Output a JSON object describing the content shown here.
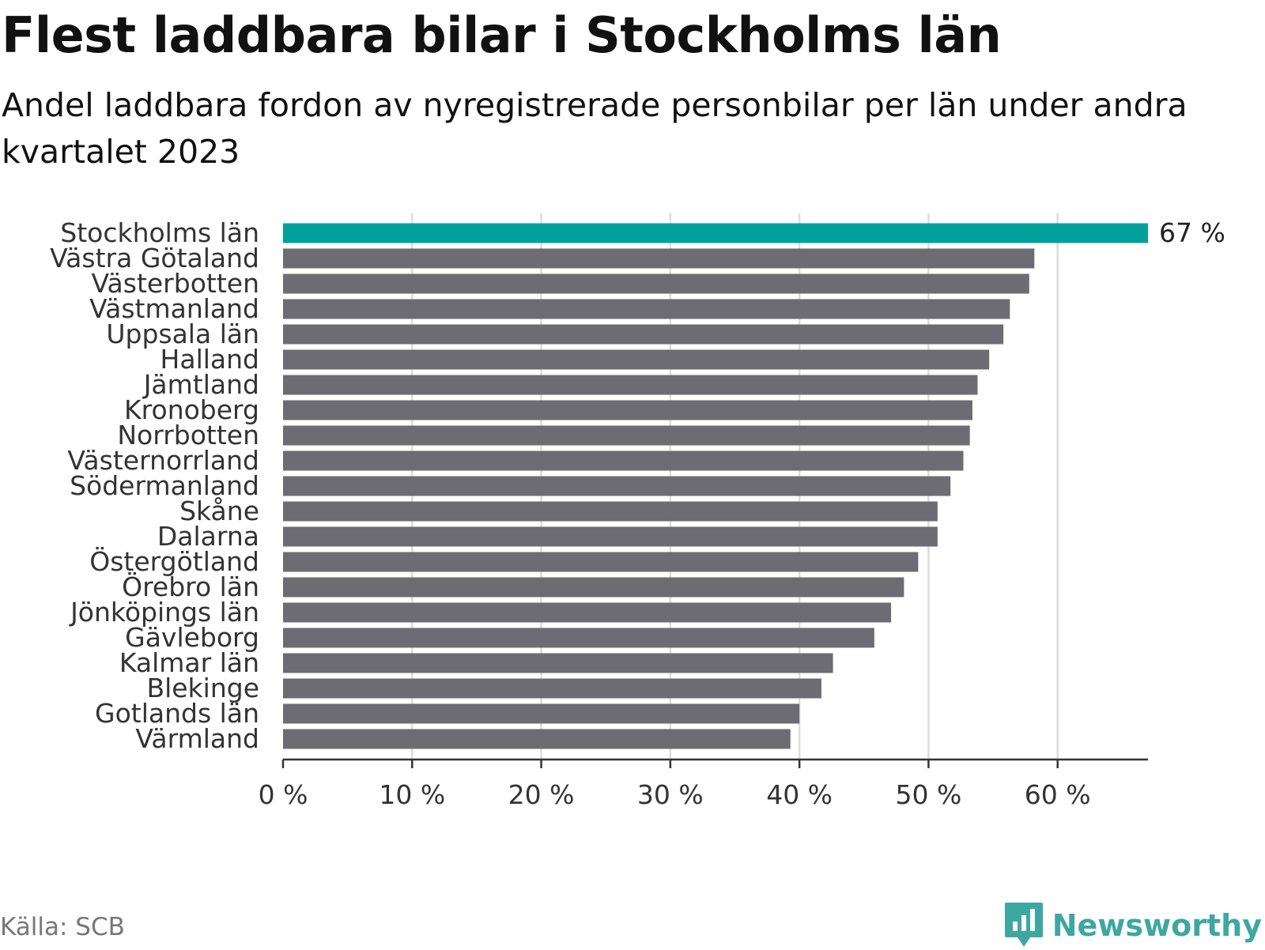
{
  "header": {
    "title": "Flest laddbara bilar i Stockholms län",
    "subtitle": "Andel laddbara fordon av nyregistrerade personbilar per län under andra kvartalet 2023"
  },
  "footer": {
    "source": "Källa: SCB",
    "brand": "Newsworthy"
  },
  "colors": {
    "highlight": "#00a19a",
    "bar": "#6d6c72",
    "grid": "#dddddd",
    "axis": "#333333",
    "brand": "#3ea7a2"
  },
  "chart_data": {
    "type": "bar",
    "orientation": "horizontal",
    "title": "Flest laddbara bilar i Stockholms län",
    "subtitle": "Andel laddbara fordon av nyregistrerade personbilar per län under andra kvartalet 2023",
    "xlabel": "",
    "ylabel": "",
    "unit": "%",
    "xlim": [
      0,
      67
    ],
    "xticks": [
      0,
      10,
      20,
      30,
      40,
      50,
      60
    ],
    "xtick_labels": [
      "0 %",
      "10 %",
      "20 %",
      "30 %",
      "40 %",
      "50 %",
      "60 %"
    ],
    "grid": true,
    "highlight_index": 0,
    "value_labels": [
      {
        "index": 0,
        "text": "67 %"
      }
    ],
    "categories": [
      "Stockholms län",
      "Västra Götaland",
      "Västerbotten",
      "Västmanland",
      "Uppsala län",
      "Halland",
      "Jämtland",
      "Kronoberg",
      "Norrbotten",
      "Västernorrland",
      "Södermanland",
      "Skåne",
      "Dalarna",
      "Östergötland",
      "Örebro län",
      "Jönköpings län",
      "Gävleborg",
      "Kalmar län",
      "Blekinge",
      "Gotlands län",
      "Värmland"
    ],
    "values": [
      67,
      58.2,
      57.8,
      56.3,
      55.8,
      54.7,
      53.8,
      53.4,
      53.2,
      52.7,
      51.7,
      50.7,
      50.7,
      49.2,
      48.1,
      47.1,
      45.8,
      42.6,
      41.7,
      40.0,
      39.3
    ]
  }
}
